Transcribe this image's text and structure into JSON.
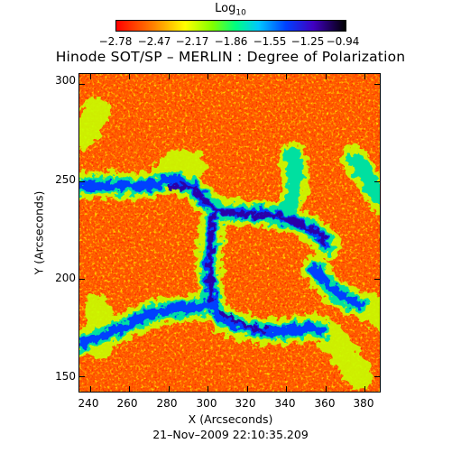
{
  "chart_data": {
    "type": "heatmap",
    "title": "Hinode SOT/SP – MERLIN : Degree of Polarization",
    "colorbar": {
      "title": "Log",
      "title_subscript": "10",
      "ticks": [
        "−2.78",
        "−2.47",
        "−2.17",
        "−1.86",
        "−1.55",
        "−1.25",
        "−0.94"
      ],
      "range": [
        -2.78,
        -0.94
      ],
      "colors": [
        "#ff0000",
        "#ff8000",
        "#ffff00",
        "#00ff80",
        "#00c8ff",
        "#0040ff",
        "#4000c0",
        "#000000"
      ]
    },
    "xlabel": "X (Arcseconds)",
    "ylabel": "Y (Arcseconds)",
    "xlim": [
      234,
      388
    ],
    "ylim": [
      142,
      306
    ],
    "xticks": [
      "240",
      "260",
      "280",
      "300",
      "320",
      "340",
      "360",
      "380"
    ],
    "yticks": [
      "300",
      "250",
      "200",
      "150"
    ],
    "grid": false,
    "annotation": "21–Nov–2009 22:10:35.209"
  }
}
